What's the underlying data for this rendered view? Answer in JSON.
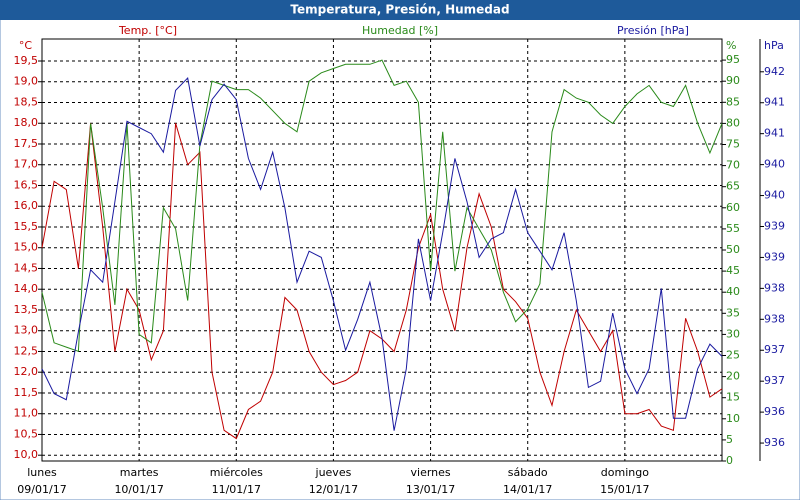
{
  "chart_data": {
    "type": "line",
    "title": "Temperatura, Presión, Humedad",
    "y_label": "°C",
    "y2_label": "%",
    "y3_label": "hPa",
    "categories": [
      "lunes",
      null,
      null,
      null,
      null,
      null,
      null,
      null,
      "martes",
      null,
      null,
      null,
      null,
      null,
      null,
      null,
      "miércoles",
      null,
      null,
      null,
      null,
      null,
      null,
      null,
      "jueves",
      null,
      null,
      null,
      null,
      null,
      null,
      null,
      "viernes",
      null,
      null,
      null,
      null,
      null,
      null,
      null,
      "sábado",
      null,
      null,
      null,
      null,
      null,
      null,
      null,
      "domingo",
      null,
      null,
      null,
      null,
      null,
      null,
      null,
      null
    ],
    "category_dates": [
      "09/01/17",
      null,
      null,
      null,
      null,
      null,
      null,
      null,
      "10/01/17",
      null,
      null,
      null,
      null,
      null,
      null,
      null,
      "11/01/17",
      null,
      null,
      null,
      null,
      null,
      null,
      null,
      "12/01/17",
      null,
      null,
      null,
      null,
      null,
      null,
      null,
      "13/01/17",
      null,
      null,
      null,
      null,
      null,
      null,
      null,
      "14/01/17",
      null,
      null,
      null,
      null,
      null,
      null,
      null,
      "15/01/17",
      null,
      null,
      null,
      null,
      null,
      null,
      null,
      null
    ],
    "series": [
      {
        "name": "Temp. [°C]",
        "color": "#c00000",
        "axis": "y",
        "values": [
          15.0,
          16.6,
          16.4,
          14.5,
          18.0,
          15.5,
          12.5,
          14.0,
          13.5,
          12.3,
          13.0,
          18.0,
          17.0,
          17.3,
          12.0,
          10.6,
          10.4,
          11.1,
          11.3,
          12.0,
          13.8,
          13.5,
          12.5,
          12.0,
          11.7,
          11.8,
          12.0,
          13.0,
          12.8,
          12.5,
          13.5,
          15.0,
          15.8,
          14.0,
          13.0,
          15.0,
          16.3,
          15.5,
          14.0,
          13.7,
          13.3,
          12.0,
          11.2,
          12.5,
          13.5,
          13.0,
          12.5,
          13.0,
          11.0,
          11.0,
          11.1,
          10.7,
          10.6,
          13.3,
          12.5,
          11.4,
          11.6
        ]
      },
      {
        "name": "Humedad [%]",
        "color": "#2a8a1a",
        "axis": "y2",
        "values": [
          40,
          28,
          27,
          26,
          80,
          60,
          37,
          80,
          30,
          28,
          60,
          55,
          38,
          75,
          90,
          89,
          88,
          88,
          86,
          83,
          80,
          78,
          90,
          92,
          93,
          94,
          94,
          94,
          95,
          89,
          90,
          85,
          45,
          78,
          45,
          60,
          55,
          50,
          40,
          33,
          36,
          42,
          78,
          88,
          86,
          85,
          82,
          80,
          84,
          87,
          89,
          85,
          84,
          89,
          80,
          73,
          80
        ]
      },
      {
        "name": "Presión [hPa]",
        "color": "#1a1aa0",
        "axis": "y3",
        "values": [
          937.0,
          936.6,
          936.5,
          937.6,
          938.6,
          938.4,
          939.7,
          941.0,
          940.9,
          940.8,
          940.5,
          941.5,
          941.7,
          940.6,
          941.35,
          941.6,
          941.35,
          940.4,
          939.9,
          940.5,
          939.6,
          938.4,
          938.9,
          938.8,
          938.1,
          937.3,
          937.8,
          938.4,
          937.5,
          936.0,
          937.0,
          939.1,
          938.1,
          939.2,
          940.4,
          939.7,
          938.8,
          939.1,
          939.2,
          939.9,
          939.2,
          938.9,
          938.6,
          939.2,
          938.1,
          936.7,
          936.8,
          937.9,
          937.0,
          936.6,
          937.0,
          938.3,
          936.2,
          936.2,
          937.0,
          937.4,
          937.2
        ]
      }
    ],
    "ylim": [
      9.86,
      20.03
    ],
    "yticks": [
      {
        "value": 10,
        "label": "10,0"
      },
      {
        "value": 10.5,
        "label": "10,5"
      },
      {
        "value": 11,
        "label": "11,0"
      },
      {
        "value": 11.5,
        "label": "11,5"
      },
      {
        "value": 12,
        "label": "12,0"
      },
      {
        "value": 12.5,
        "label": "12,5"
      },
      {
        "value": 13,
        "label": "13,0"
      },
      {
        "value": 13.5,
        "label": "13,5"
      },
      {
        "value": 14,
        "label": "14,0"
      },
      {
        "value": 14.5,
        "label": "14,5"
      },
      {
        "value": 15,
        "label": "15,0"
      },
      {
        "value": 15.5,
        "label": "15,5"
      },
      {
        "value": 16,
        "label": "16,0"
      },
      {
        "value": 16.5,
        "label": "16,5"
      },
      {
        "value": 17,
        "label": "17,0"
      },
      {
        "value": 17.5,
        "label": "17,5"
      },
      {
        "value": 18,
        "label": "18,0"
      },
      {
        "value": 18.5,
        "label": "18,5"
      },
      {
        "value": 19,
        "label": "19,0"
      },
      {
        "value": 19.5,
        "label": "19,5"
      }
    ],
    "y2lim": [
      0,
      100
    ],
    "y2ticks": [
      0,
      5,
      10,
      15,
      20,
      25,
      30,
      35,
      40,
      45,
      50,
      55,
      60,
      65,
      70,
      75,
      80,
      85,
      90,
      95
    ],
    "y3lim": [
      935.51,
      942.33
    ],
    "y3ticks": [
      {
        "value": 935.8,
        "label": "936"
      },
      {
        "value": 936.3,
        "label": "936"
      },
      {
        "value": 936.8,
        "label": "937"
      },
      {
        "value": 937.3,
        "label": "937"
      },
      {
        "value": 937.8,
        "label": "938"
      },
      {
        "value": 938.3,
        "label": "938"
      },
      {
        "value": 938.8,
        "label": "939"
      },
      {
        "value": 939.3,
        "label": "939"
      },
      {
        "value": 939.8,
        "label": "940"
      },
      {
        "value": 940.3,
        "label": "940"
      },
      {
        "value": 940.8,
        "label": "941"
      },
      {
        "value": 941.3,
        "label": "941"
      },
      {
        "value": 941.8,
        "label": "942"
      }
    ],
    "grid": true
  }
}
